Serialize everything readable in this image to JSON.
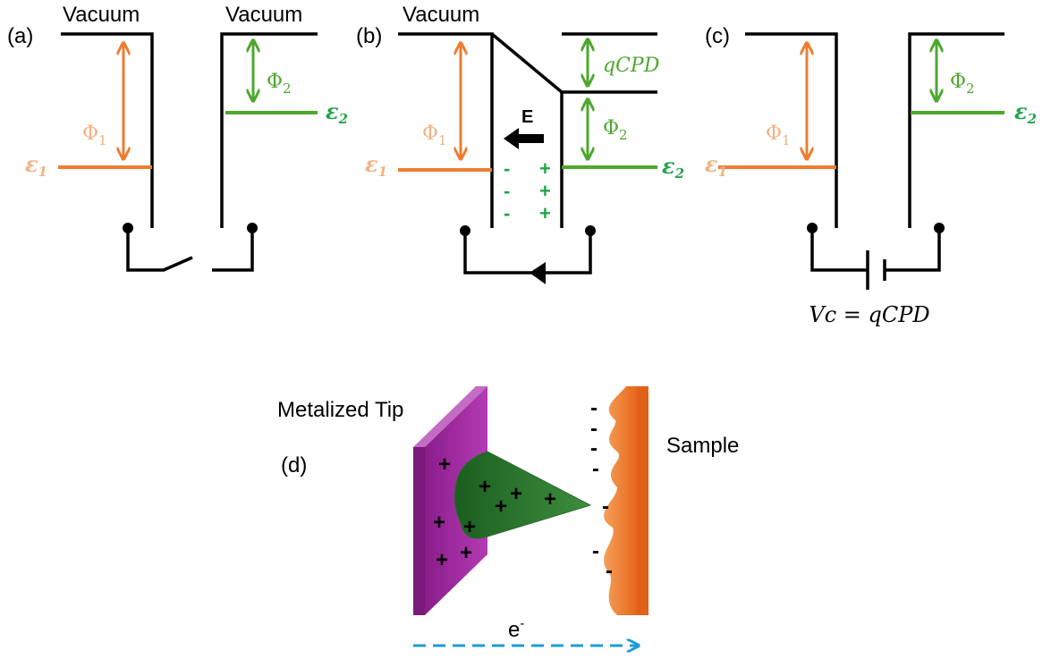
{
  "panels": [
    {
      "label": "(a)",
      "vacuum_left": "Vacuum",
      "vacuum_right": "Vacuum",
      "phi1": "Φ",
      "phi1_sub": "1",
      "phi2": "Φ",
      "phi2_sub": "2",
      "eps1": "ε",
      "eps1_sub": "1",
      "eps2": "ε",
      "eps2_sub": "2"
    },
    {
      "label": "(b)",
      "vacuum": "Vacuum",
      "qcpd": "qCPD",
      "field": "E",
      "phi1": "Φ",
      "phi1_sub": "1",
      "phi2": "Φ",
      "phi2_sub": "2",
      "eps1": "ε",
      "eps1_sub": "1",
      "eps2": "ε",
      "eps2_sub": "2",
      "left_charges": [
        "-",
        "-",
        "-"
      ],
      "right_charges": [
        "+",
        "+",
        "+"
      ]
    },
    {
      "label": "(c)",
      "voltage": "Vc = qCPD",
      "phi1": "Φ",
      "phi1_sub": "1",
      "phi2": "Φ",
      "phi2_sub": "2",
      "eps1": "ε",
      "eps1_sub": "1",
      "eps2": "ε",
      "eps2_sub": "2"
    }
  ],
  "panel_d": {
    "label": "(d)",
    "tip": "Metalized Tip",
    "sample": "Sample",
    "electron": "e",
    "electron_sup": "-",
    "tip_charges": [
      "+",
      "+",
      "+",
      "+",
      "+",
      "+",
      "+",
      "+",
      "+"
    ],
    "sample_charges": [
      "-",
      "-",
      "-",
      "-",
      "-",
      "-",
      "-"
    ]
  }
}
